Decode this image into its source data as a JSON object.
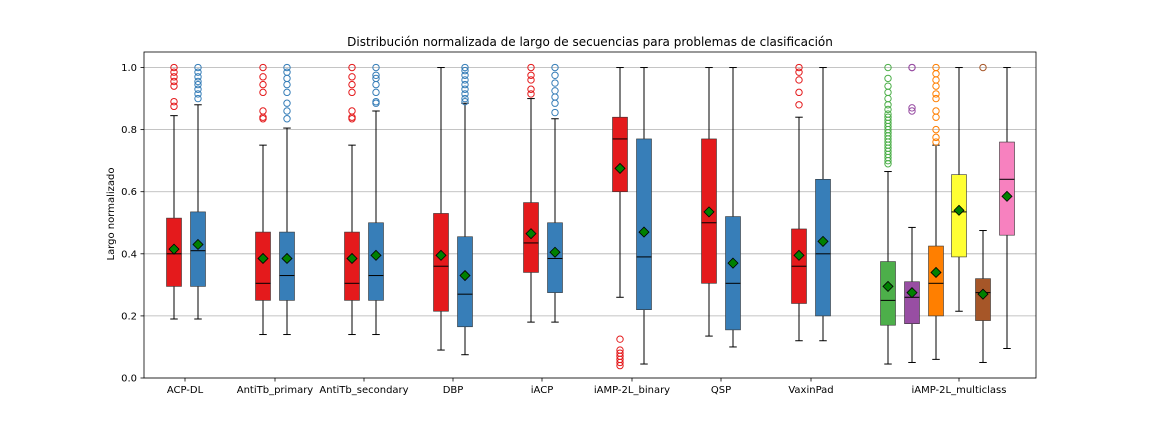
{
  "chart_data": {
    "type": "box",
    "title": "Distribución normalizada de largo de secuencias para problemas de clasificación",
    "xlabel": "",
    "ylabel": "Largo normalizado",
    "ylim": [
      0,
      1.05
    ],
    "yticks": [
      "0.0",
      "0.2",
      "0.4",
      "0.6",
      "0.8",
      "1.0"
    ],
    "grid": "horizontal",
    "categories": [
      "ACP-DL",
      "AntiTb_primary",
      "AntiTb_secondary",
      "DBP",
      "iACP",
      "iAMP-2L_binary",
      "QSP",
      "VaxinPad",
      "iAMP-2L_multiclass"
    ],
    "mean_marker_color": "#008000",
    "median_color": "#000000",
    "boxes": [
      {
        "category": "ACP-DL",
        "color": "#e41a1c",
        "whislo": 0.19,
        "q1": 0.295,
        "med": 0.4,
        "q3": 0.515,
        "whishi": 0.845,
        "mean": 0.415,
        "fliers": [
          0.875,
          0.89,
          0.94,
          0.955,
          0.97,
          0.985,
          1.0
        ]
      },
      {
        "category": "ACP-DL",
        "color": "#377eb8",
        "whislo": 0.19,
        "q1": 0.295,
        "med": 0.41,
        "q3": 0.535,
        "whishi": 0.88,
        "mean": 0.43,
        "fliers": [
          0.9,
          0.915,
          0.93,
          0.945,
          0.955,
          0.97,
          0.985,
          1.0
        ]
      },
      {
        "category": "AntiTb_primary",
        "color": "#e41a1c",
        "whislo": 0.14,
        "q1": 0.25,
        "med": 0.305,
        "q3": 0.47,
        "whishi": 0.75,
        "mean": 0.385,
        "fliers": [
          0.835,
          0.84,
          0.86,
          0.92,
          0.945,
          0.97,
          1.0
        ]
      },
      {
        "category": "AntiTb_primary",
        "color": "#377eb8",
        "whislo": 0.14,
        "q1": 0.25,
        "med": 0.33,
        "q3": 0.47,
        "whishi": 0.805,
        "mean": 0.385,
        "fliers": [
          0.835,
          0.86,
          0.885,
          0.92,
          0.945,
          0.965,
          0.985,
          1.0
        ]
      },
      {
        "category": "AntiTb_secondary",
        "color": "#e41a1c",
        "whislo": 0.14,
        "q1": 0.25,
        "med": 0.305,
        "q3": 0.47,
        "whishi": 0.75,
        "mean": 0.385,
        "fliers": [
          0.835,
          0.84,
          0.86,
          0.92,
          0.945,
          0.97,
          1.0
        ]
      },
      {
        "category": "AntiTb_secondary",
        "color": "#377eb8",
        "whislo": 0.14,
        "q1": 0.25,
        "med": 0.33,
        "q3": 0.5,
        "whishi": 0.86,
        "mean": 0.395,
        "fliers": [
          0.885,
          0.89,
          0.92,
          0.945,
          0.965,
          0.975,
          1.0
        ]
      },
      {
        "category": "DBP",
        "color": "#e41a1c",
        "whislo": 0.09,
        "q1": 0.215,
        "med": 0.36,
        "q3": 0.53,
        "whishi": 1.0,
        "mean": 0.395,
        "fliers": []
      },
      {
        "category": "DBP",
        "color": "#377eb8",
        "whislo": 0.075,
        "q1": 0.165,
        "med": 0.27,
        "q3": 0.455,
        "whishi": 0.885,
        "mean": 0.33,
        "fliers": [
          0.89,
          0.9,
          0.915,
          0.93,
          0.945,
          0.96,
          0.975,
          0.99,
          1.0
        ]
      },
      {
        "category": "iACP",
        "color": "#e41a1c",
        "whislo": 0.18,
        "q1": 0.34,
        "med": 0.435,
        "q3": 0.565,
        "whishi": 0.9,
        "mean": 0.465,
        "fliers": [
          0.915,
          0.93,
          0.96,
          0.975,
          1.0
        ]
      },
      {
        "category": "iACP",
        "color": "#377eb8",
        "whislo": 0.18,
        "q1": 0.275,
        "med": 0.385,
        "q3": 0.5,
        "whishi": 0.835,
        "mean": 0.405,
        "fliers": [
          0.855,
          0.885,
          0.905,
          0.925,
          0.95,
          0.975,
          1.0
        ]
      },
      {
        "category": "iAMP-2L_binary",
        "color": "#e41a1c",
        "whislo": 0.26,
        "q1": 0.6,
        "med": 0.77,
        "q3": 0.84,
        "whishi": 1.0,
        "mean": 0.675,
        "fliers": [
          0.04,
          0.05,
          0.06,
          0.07,
          0.08,
          0.09,
          0.125
        ]
      },
      {
        "category": "iAMP-2L_binary",
        "color": "#377eb8",
        "whislo": 0.045,
        "q1": 0.22,
        "med": 0.39,
        "q3": 0.77,
        "whishi": 1.0,
        "mean": 0.47,
        "fliers": []
      },
      {
        "category": "QSP",
        "color": "#e41a1c",
        "whislo": 0.135,
        "q1": 0.305,
        "med": 0.5,
        "q3": 0.77,
        "whishi": 1.0,
        "mean": 0.535,
        "fliers": []
      },
      {
        "category": "QSP",
        "color": "#377eb8",
        "whislo": 0.1,
        "q1": 0.155,
        "med": 0.305,
        "q3": 0.52,
        "whishi": 1.0,
        "mean": 0.37,
        "fliers": []
      },
      {
        "category": "VaxinPad",
        "color": "#e41a1c",
        "whislo": 0.12,
        "q1": 0.24,
        "med": 0.36,
        "q3": 0.48,
        "whishi": 0.84,
        "mean": 0.395,
        "fliers": [
          0.88,
          0.92,
          0.96,
          0.985,
          1.0
        ]
      },
      {
        "category": "VaxinPad",
        "color": "#377eb8",
        "whislo": 0.12,
        "q1": 0.2,
        "med": 0.4,
        "q3": 0.64,
        "whishi": 1.0,
        "mean": 0.44,
        "fliers": []
      },
      {
        "category": "iAMP-2L_multiclass",
        "color": "#4daf4a",
        "whislo": 0.045,
        "q1": 0.17,
        "med": 0.25,
        "q3": 0.375,
        "whishi": 0.665,
        "mean": 0.295,
        "fliers": [
          0.69,
          0.7,
          0.71,
          0.72,
          0.73,
          0.74,
          0.75,
          0.76,
          0.77,
          0.78,
          0.79,
          0.8,
          0.81,
          0.82,
          0.83,
          0.84,
          0.85,
          0.865,
          0.88,
          0.9,
          0.92,
          0.94,
          0.965,
          1.0
        ]
      },
      {
        "category": "iAMP-2L_multiclass",
        "color": "#984ea3",
        "whislo": 0.05,
        "q1": 0.175,
        "med": 0.26,
        "q3": 0.31,
        "whishi": 0.485,
        "mean": 0.275,
        "fliers": [
          0.86,
          0.87,
          1.0,
          1.0
        ]
      },
      {
        "category": "iAMP-2L_multiclass",
        "color": "#ff7f00",
        "whislo": 0.06,
        "q1": 0.2,
        "med": 0.305,
        "q3": 0.425,
        "whishi": 0.75,
        "mean": 0.34,
        "fliers": [
          0.76,
          0.775,
          0.8,
          0.84,
          0.86,
          0.9,
          0.915,
          0.94,
          0.96,
          0.98,
          1.0
        ]
      },
      {
        "category": "iAMP-2L_multiclass",
        "color": "#ffff33",
        "whislo": 0.215,
        "q1": 0.39,
        "med": 0.535,
        "q3": 0.655,
        "whishi": 1.0,
        "mean": 0.54,
        "fliers": []
      },
      {
        "category": "iAMP-2L_multiclass",
        "color": "#a65628",
        "whislo": 0.05,
        "q1": 0.185,
        "med": 0.275,
        "q3": 0.32,
        "whishi": 0.475,
        "mean": 0.27,
        "fliers": [
          1.0
        ]
      },
      {
        "category": "iAMP-2L_multiclass",
        "color": "#f781bf",
        "whislo": 0.095,
        "q1": 0.46,
        "med": 0.64,
        "q3": 0.76,
        "whishi": 1.0,
        "mean": 0.585,
        "fliers": []
      }
    ]
  }
}
